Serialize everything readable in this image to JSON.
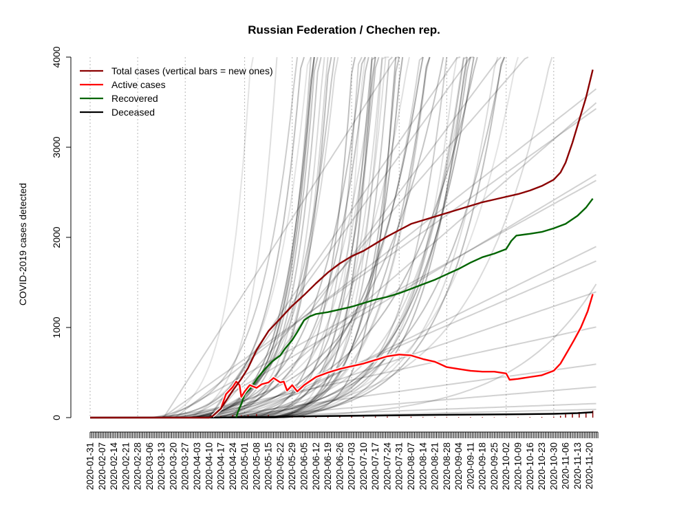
{
  "chart_data": {
    "type": "line",
    "title": "Russian Federation / Chechen rep.",
    "xlabel": "",
    "ylabel": "COVID-2019 cases detected",
    "ylim": [
      0,
      4000
    ],
    "yticks": [
      0,
      1000,
      2000,
      3000,
      4000
    ],
    "x_start": "2020-01-31",
    "x_end": "2020-11-25",
    "xticks": [
      "2020-01-31",
      "2020-02-07",
      "2020-02-14",
      "2020-02-21",
      "2020-02-28",
      "2020-03-06",
      "2020-03-13",
      "2020-03-20",
      "2020-03-27",
      "2020-04-03",
      "2020-04-10",
      "2020-04-17",
      "2020-04-24",
      "2020-05-01",
      "2020-05-08",
      "2020-05-15",
      "2020-05-22",
      "2020-05-29",
      "2020-06-05",
      "2020-06-12",
      "2020-06-19",
      "2020-06-26",
      "2020-07-03",
      "2020-07-10",
      "2020-07-17",
      "2020-07-24",
      "2020-07-31",
      "2020-08-07",
      "2020-08-14",
      "2020-08-21",
      "2020-08-28",
      "2020-09-04",
      "2020-09-11",
      "2020-09-18",
      "2020-09-25",
      "2020-10-02",
      "2020-10-09",
      "2020-10-16",
      "2020-10-23",
      "2020-10-30",
      "2020-11-06",
      "2020-11-13",
      "2020-11-20"
    ],
    "vertical_gridlines": [
      "2020-01-31",
      "2020-02-28",
      "2020-03-27",
      "2020-05-01",
      "2020-05-29",
      "2020-07-03",
      "2020-07-31",
      "2020-08-28",
      "2020-10-02",
      "2020-10-30"
    ],
    "grid": "dotted vertical lines at month boundaries",
    "legend_position": "top-left",
    "legend": [
      {
        "label": "Total cases (vertical bars = new ones)",
        "color": "#8b0000"
      },
      {
        "label": "Active cases",
        "color": "#ff0000"
      },
      {
        "label": "Recovered",
        "color": "#006400"
      },
      {
        "label": "Deceased",
        "color": "#000000"
      }
    ],
    "series": [
      {
        "name": "Total cases (vertical bars = new ones)",
        "color": "#8b0000",
        "points": [
          [
            "2020-01-31",
            0
          ],
          [
            "2020-04-10",
            0
          ],
          [
            "2020-04-12",
            15
          ],
          [
            "2020-04-17",
            100
          ],
          [
            "2020-04-24",
            300
          ],
          [
            "2020-04-29",
            430
          ],
          [
            "2020-05-03",
            550
          ],
          [
            "2020-05-08",
            750
          ],
          [
            "2020-05-15",
            960
          ],
          [
            "2020-05-22",
            1100
          ],
          [
            "2020-05-29",
            1240
          ],
          [
            "2020-06-05",
            1360
          ],
          [
            "2020-06-12",
            1490
          ],
          [
            "2020-06-19",
            1610
          ],
          [
            "2020-06-26",
            1710
          ],
          [
            "2020-07-03",
            1790
          ],
          [
            "2020-07-10",
            1850
          ],
          [
            "2020-07-17",
            1930
          ],
          [
            "2020-07-24",
            2010
          ],
          [
            "2020-07-31",
            2080
          ],
          [
            "2020-08-07",
            2150
          ],
          [
            "2020-08-14",
            2190
          ],
          [
            "2020-08-21",
            2230
          ],
          [
            "2020-08-28",
            2270
          ],
          [
            "2020-09-04",
            2310
          ],
          [
            "2020-09-11",
            2350
          ],
          [
            "2020-09-18",
            2390
          ],
          [
            "2020-09-25",
            2420
          ],
          [
            "2020-10-02",
            2450
          ],
          [
            "2020-10-09",
            2480
          ],
          [
            "2020-10-16",
            2520
          ],
          [
            "2020-10-23",
            2570
          ],
          [
            "2020-10-30",
            2640
          ],
          [
            "2020-11-03",
            2720
          ],
          [
            "2020-11-06",
            2830
          ],
          [
            "2020-11-10",
            3050
          ],
          [
            "2020-11-14",
            3300
          ],
          [
            "2020-11-18",
            3550
          ],
          [
            "2020-11-22",
            3860
          ]
        ]
      },
      {
        "name": "Active cases",
        "color": "#ff0000",
        "points": [
          [
            "2020-04-12",
            15
          ],
          [
            "2020-04-17",
            100
          ],
          [
            "2020-04-20",
            260
          ],
          [
            "2020-04-24",
            340
          ],
          [
            "2020-04-26",
            400
          ],
          [
            "2020-04-28",
            360
          ],
          [
            "2020-04-29",
            230
          ],
          [
            "2020-05-01",
            290
          ],
          [
            "2020-05-04",
            360
          ],
          [
            "2020-05-08",
            330
          ],
          [
            "2020-05-11",
            370
          ],
          [
            "2020-05-15",
            390
          ],
          [
            "2020-05-18",
            440
          ],
          [
            "2020-05-22",
            390
          ],
          [
            "2020-05-24",
            400
          ],
          [
            "2020-05-26",
            300
          ],
          [
            "2020-05-29",
            360
          ],
          [
            "2020-06-01",
            290
          ],
          [
            "2020-06-05",
            360
          ],
          [
            "2020-06-12",
            450
          ],
          [
            "2020-06-19",
            500
          ],
          [
            "2020-06-26",
            540
          ],
          [
            "2020-07-03",
            570
          ],
          [
            "2020-07-10",
            600
          ],
          [
            "2020-07-17",
            640
          ],
          [
            "2020-07-24",
            680
          ],
          [
            "2020-07-31",
            700
          ],
          [
            "2020-08-07",
            690
          ],
          [
            "2020-08-14",
            650
          ],
          [
            "2020-08-21",
            620
          ],
          [
            "2020-08-28",
            560
          ],
          [
            "2020-09-04",
            540
          ],
          [
            "2020-09-11",
            520
          ],
          [
            "2020-09-18",
            510
          ],
          [
            "2020-09-25",
            510
          ],
          [
            "2020-10-02",
            490
          ],
          [
            "2020-10-04",
            420
          ],
          [
            "2020-10-09",
            430
          ],
          [
            "2020-10-16",
            450
          ],
          [
            "2020-10-23",
            470
          ],
          [
            "2020-10-30",
            520
          ],
          [
            "2020-11-03",
            600
          ],
          [
            "2020-11-07",
            730
          ],
          [
            "2020-11-11",
            860
          ],
          [
            "2020-11-15",
            1000
          ],
          [
            "2020-11-19",
            1180
          ],
          [
            "2020-11-22",
            1370
          ]
        ]
      },
      {
        "name": "Recovered",
        "color": "#006400",
        "points": [
          [
            "2020-04-26",
            0
          ],
          [
            "2020-04-27",
            60
          ],
          [
            "2020-04-29",
            150
          ],
          [
            "2020-05-01",
            260
          ],
          [
            "2020-05-05",
            340
          ],
          [
            "2020-05-09",
            450
          ],
          [
            "2020-05-13",
            540
          ],
          [
            "2020-05-17",
            620
          ],
          [
            "2020-05-22",
            690
          ],
          [
            "2020-05-25",
            770
          ],
          [
            "2020-05-29",
            860
          ],
          [
            "2020-06-01",
            950
          ],
          [
            "2020-06-05",
            1080
          ],
          [
            "2020-06-08",
            1120
          ],
          [
            "2020-06-12",
            1150
          ],
          [
            "2020-06-19",
            1170
          ],
          [
            "2020-06-26",
            1200
          ],
          [
            "2020-07-03",
            1230
          ],
          [
            "2020-07-10",
            1270
          ],
          [
            "2020-07-17",
            1310
          ],
          [
            "2020-07-24",
            1340
          ],
          [
            "2020-07-31",
            1380
          ],
          [
            "2020-08-07",
            1430
          ],
          [
            "2020-08-14",
            1480
          ],
          [
            "2020-08-21",
            1530
          ],
          [
            "2020-08-28",
            1590
          ],
          [
            "2020-09-04",
            1650
          ],
          [
            "2020-09-11",
            1720
          ],
          [
            "2020-09-18",
            1780
          ],
          [
            "2020-09-25",
            1820
          ],
          [
            "2020-10-02",
            1870
          ],
          [
            "2020-10-05",
            1960
          ],
          [
            "2020-10-08",
            2020
          ],
          [
            "2020-10-16",
            2040
          ],
          [
            "2020-10-23",
            2060
          ],
          [
            "2020-10-30",
            2100
          ],
          [
            "2020-11-06",
            2150
          ],
          [
            "2020-11-13",
            2240
          ],
          [
            "2020-11-18",
            2330
          ],
          [
            "2020-11-22",
            2430
          ]
        ]
      },
      {
        "name": "Deceased",
        "color": "#000000",
        "points": [
          [
            "2020-01-31",
            0
          ],
          [
            "2020-04-15",
            1
          ],
          [
            "2020-05-01",
            5
          ],
          [
            "2020-05-29",
            12
          ],
          [
            "2020-07-03",
            20
          ],
          [
            "2020-07-31",
            26
          ],
          [
            "2020-08-28",
            31
          ],
          [
            "2020-10-02",
            36
          ],
          [
            "2020-10-30",
            42
          ],
          [
            "2020-11-13",
            50
          ],
          [
            "2020-11-22",
            60
          ]
        ]
      }
    ],
    "background_series_color": "#d3d3d3"
  }
}
